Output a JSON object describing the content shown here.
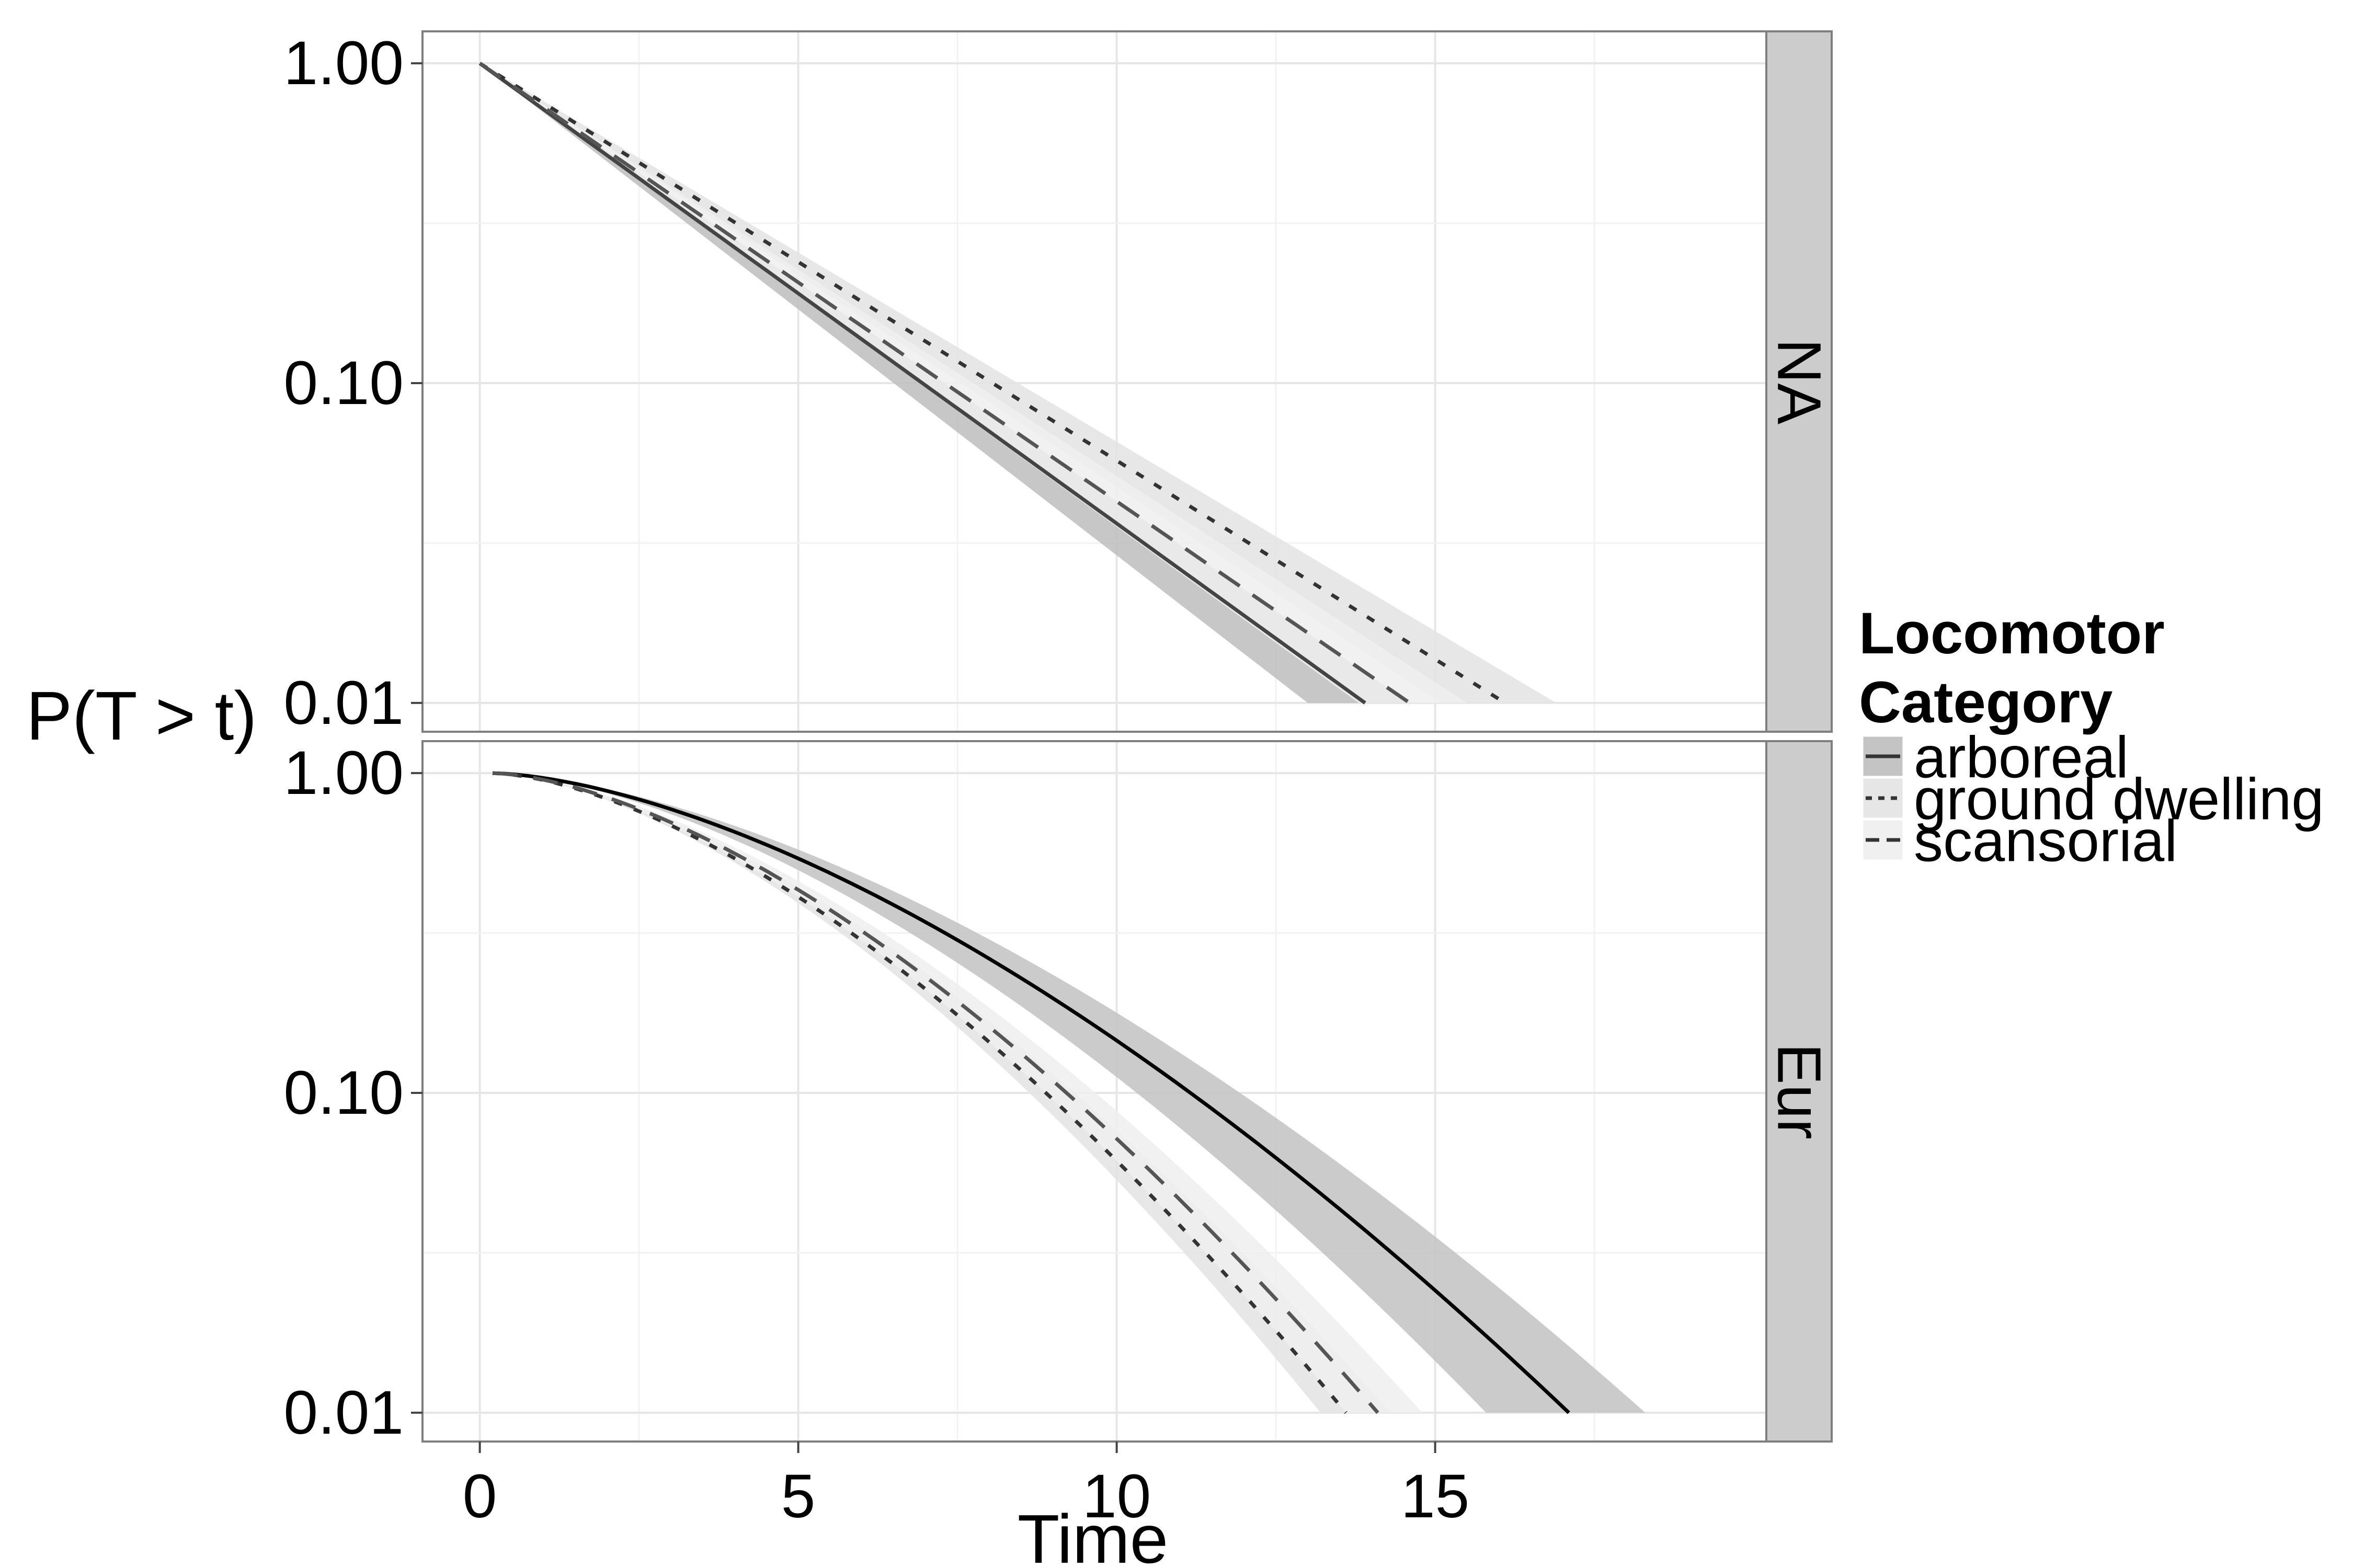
{
  "chart_data": {
    "type": "line",
    "xlabel": "Time",
    "ylabel": "P(T > t)",
    "xlim": [
      -0.9,
      20.2
    ],
    "x_ticks": [
      0,
      5,
      10,
      15
    ],
    "ylim_log10": [
      -2.09,
      0.1
    ],
    "y_scale": "log",
    "y_ticks": [
      1.0,
      0.1,
      0.01
    ],
    "y_tick_labels": [
      "1.00",
      "0.10",
      "0.01"
    ],
    "grid": true,
    "legend": {
      "title_line1": "Locomotor",
      "title_line2": "Category",
      "position": "right",
      "entries": [
        {
          "label": "arboreal",
          "dash": "solid",
          "fill": "#c4c4c4"
        },
        {
          "label": "ground dwelling",
          "dash": "dotted",
          "fill": "#e6e6e6"
        },
        {
          "label": "scansorial",
          "dash": "dashed",
          "fill": "#f0f0f0"
        }
      ]
    },
    "panels": [
      {
        "strip": "NA",
        "series": [
          {
            "name": "arboreal",
            "dash": "solid",
            "color": "#444444",
            "fill": "#bdbdbd",
            "model": "exp",
            "start": 0.0,
            "t_at_001": 13.9,
            "band_lower_t_at_001": 13.0,
            "band_upper_t_at_001": 14.6
          },
          {
            "name": "ground dwelling",
            "dash": "dotted",
            "color": "#333333",
            "fill": "#e3e3e3",
            "model": "exp",
            "start": 0.0,
            "t_at_001": 16.1,
            "band_lower_t_at_001": 15.1,
            "band_upper_t_at_001": 16.9
          },
          {
            "name": "scansorial",
            "dash": "dashed",
            "color": "#555555",
            "fill": "#efefef",
            "model": "exp",
            "start": 0.0,
            "t_at_001": 14.6,
            "band_lower_t_at_001": 13.8,
            "band_upper_t_at_001": 15.5
          }
        ]
      },
      {
        "strip": "Eur",
        "series": [
          {
            "name": "arboreal",
            "dash": "solid",
            "color": "#000000",
            "fill": "#c2c2c2",
            "model": "weibull",
            "start": 0.2,
            "t_at_001": 17.1,
            "band_lower_t_at_001": 15.8,
            "band_upper_t_at_001": 18.3
          },
          {
            "name": "ground dwelling",
            "dash": "dotted",
            "color": "#333333",
            "fill": "#e3e3e3",
            "model": "weibull",
            "start": 0.2,
            "t_at_001": 13.6,
            "band_lower_t_at_001": 13.2,
            "band_upper_t_at_001": 14.3
          },
          {
            "name": "scansorial",
            "dash": "dashed",
            "color": "#555555",
            "fill": "#efefef",
            "model": "weibull",
            "start": 0.2,
            "t_at_001": 14.1,
            "band_lower_t_at_001": 13.6,
            "band_upper_t_at_001": 14.8
          }
        ]
      }
    ]
  }
}
